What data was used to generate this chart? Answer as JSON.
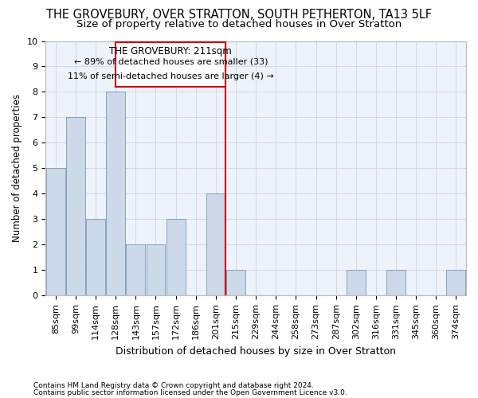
{
  "title": "THE GROVEBURY, OVER STRATTON, SOUTH PETHERTON, TA13 5LF",
  "subtitle": "Size of property relative to detached houses in Over Stratton",
  "xlabel": "Distribution of detached houses by size in Over Stratton",
  "ylabel": "Number of detached properties",
  "footer_line1": "Contains HM Land Registry data © Crown copyright and database right 2024.",
  "footer_line2": "Contains public sector information licensed under the Open Government Licence v3.0.",
  "categories": [
    "85sqm",
    "99sqm",
    "114sqm",
    "128sqm",
    "143sqm",
    "157sqm",
    "172sqm",
    "186sqm",
    "201sqm",
    "215sqm",
    "229sqm",
    "244sqm",
    "258sqm",
    "273sqm",
    "287sqm",
    "302sqm",
    "316sqm",
    "331sqm",
    "345sqm",
    "360sqm",
    "374sqm"
  ],
  "values": [
    5,
    7,
    3,
    8,
    2,
    2,
    3,
    0,
    4,
    1,
    0,
    0,
    0,
    0,
    0,
    1,
    0,
    1,
    0,
    0,
    1
  ],
  "bar_color": "#ccd9e8",
  "bar_edge_color": "#7898b8",
  "property_label": "THE GROVEBURY: 211sqm",
  "annotation_line1": "← 89% of detached houses are smaller (33)",
  "annotation_line2": "11% of semi-detached houses are larger (4) →",
  "annotation_box_color": "#cc0000",
  "line_color": "#cc0000",
  "ylim": [
    0,
    10
  ],
  "yticks": [
    0,
    1,
    2,
    3,
    4,
    5,
    6,
    7,
    8,
    9,
    10
  ],
  "background_color": "#eef2fb",
  "grid_color": "#d0d8ee",
  "title_fontsize": 10.5,
  "subtitle_fontsize": 9.5,
  "xlabel_fontsize": 9,
  "ylabel_fontsize": 8.5,
  "tick_fontsize": 8,
  "footer_fontsize": 6.5,
  "annot_fontsize": 8.5
}
